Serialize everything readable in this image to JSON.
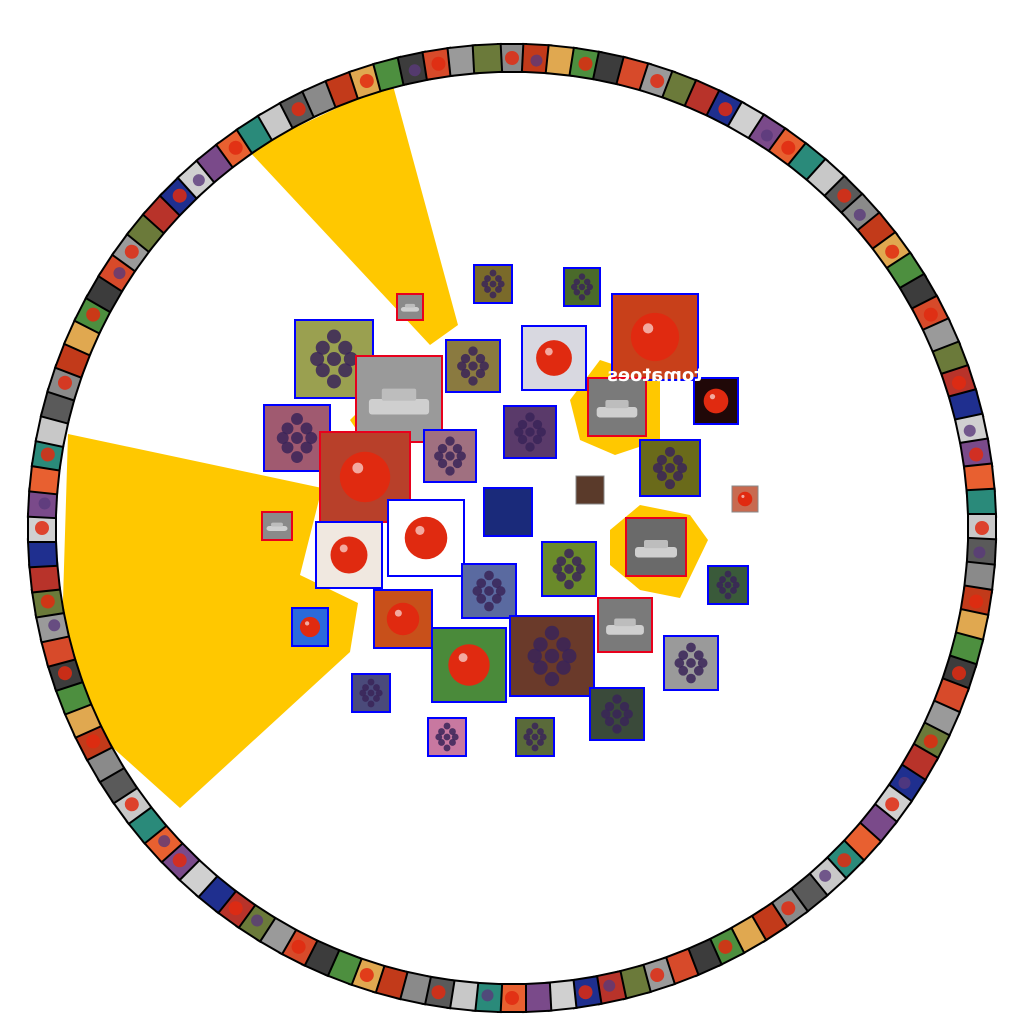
{
  "colors": {
    "background": "#ffffff",
    "highlight_fill": "#ffc800",
    "frame_blue": "#0000ff",
    "frame_red": "#e8001c",
    "ring_border": "#000000"
  },
  "ring": {
    "thumbnail_count": 120,
    "palette": [
      "#8a8a8a",
      "#c23a1a",
      "#e0a850",
      "#4d8f3f",
      "#3c3c3c",
      "#d74a2a",
      "#9a9a9a",
      "#6b7a3a",
      "#b8332a",
      "#1f2f8f",
      "#d0d0d0",
      "#7a4a8a",
      "#e86030",
      "#2a8a7a",
      "#c8c8c8",
      "#5a5a5a"
    ]
  },
  "highlighted_sectors": 3,
  "highlighted_blobs": 2,
  "overlay_texts": {
    "tomatoes_label": "tomatoes"
  },
  "cluster_thumbnails": [
    {
      "name": "grape-image",
      "frame": "blue",
      "color": "#7a6a2a"
    },
    {
      "name": "grape-image",
      "frame": "blue",
      "color": "#4a6a2a"
    },
    {
      "name": "car-image",
      "frame": "red",
      "color": "#8a8a8a"
    },
    {
      "name": "grape-image",
      "frame": "blue",
      "color": "#9aa050"
    },
    {
      "name": "grape-image",
      "frame": "blue",
      "color": "#8a7a40"
    },
    {
      "name": "tomato-image",
      "frame": "blue",
      "color": "#d8d8e0"
    },
    {
      "name": "tomato-image",
      "frame": "blue",
      "color": "#c8401a"
    },
    {
      "name": "car-image",
      "frame": "red",
      "color": "#9a9a9a"
    },
    {
      "name": "grape-image",
      "frame": "blue",
      "color": "#a05a70"
    },
    {
      "name": "car-image",
      "frame": "red",
      "color": "#7a7a7a"
    },
    {
      "name": "tomato-image",
      "frame": "blue",
      "color": "#200808"
    },
    {
      "name": "grape-image",
      "frame": "blue",
      "color": "#5a3a6a"
    },
    {
      "name": "grape-image",
      "frame": "blue",
      "color": "#a07080"
    },
    {
      "name": "tomato-image",
      "frame": "red",
      "color": "#b8402a"
    },
    {
      "name": "grape-image",
      "frame": "blue",
      "color": "#6a6a1a"
    },
    {
      "name": "misc-image",
      "frame": "none",
      "color": "#5a3a2a"
    },
    {
      "name": "tomato-image",
      "frame": "none",
      "color": "#c86a50"
    },
    {
      "name": "misc-image",
      "frame": "blue",
      "color": "#1a2a7a"
    },
    {
      "name": "tomato-image",
      "frame": "blue",
      "color": "#ffffff"
    },
    {
      "name": "car-image",
      "frame": "red",
      "color": "#8a8a8a"
    },
    {
      "name": "tomato-image",
      "frame": "blue",
      "color": "#f0e8e0"
    },
    {
      "name": "grape-image",
      "frame": "blue",
      "color": "#6a8a2a"
    },
    {
      "name": "car-image",
      "frame": "red",
      "color": "#6a6a6a"
    },
    {
      "name": "grape-image",
      "frame": "blue",
      "color": "#5a6aa0"
    },
    {
      "name": "grape-image",
      "frame": "blue",
      "color": "#3a5a3a"
    },
    {
      "name": "tomato-image",
      "frame": "blue",
      "color": "#2a6adc"
    },
    {
      "name": "tomato-image",
      "frame": "blue",
      "color": "#c8501a"
    },
    {
      "name": "car-image",
      "frame": "red",
      "color": "#7a7a7a"
    },
    {
      "name": "tomato-image",
      "frame": "blue",
      "color": "#4a8a3a"
    },
    {
      "name": "grape-image",
      "frame": "blue",
      "color": "#6a3a2a"
    },
    {
      "name": "grape-image",
      "frame": "blue",
      "color": "#9a9a9a"
    },
    {
      "name": "grape-image",
      "frame": "blue",
      "color": "#4a4a7a"
    },
    {
      "name": "grape-image",
      "frame": "blue",
      "color": "#3a4a3a"
    },
    {
      "name": "grape-image",
      "frame": "blue",
      "color": "#c878a0"
    },
    {
      "name": "grape-image",
      "frame": "blue",
      "color": "#5a6a3a"
    },
    {
      "name": "tomato-image",
      "frame": "blue",
      "color": "#ffffff"
    }
  ]
}
